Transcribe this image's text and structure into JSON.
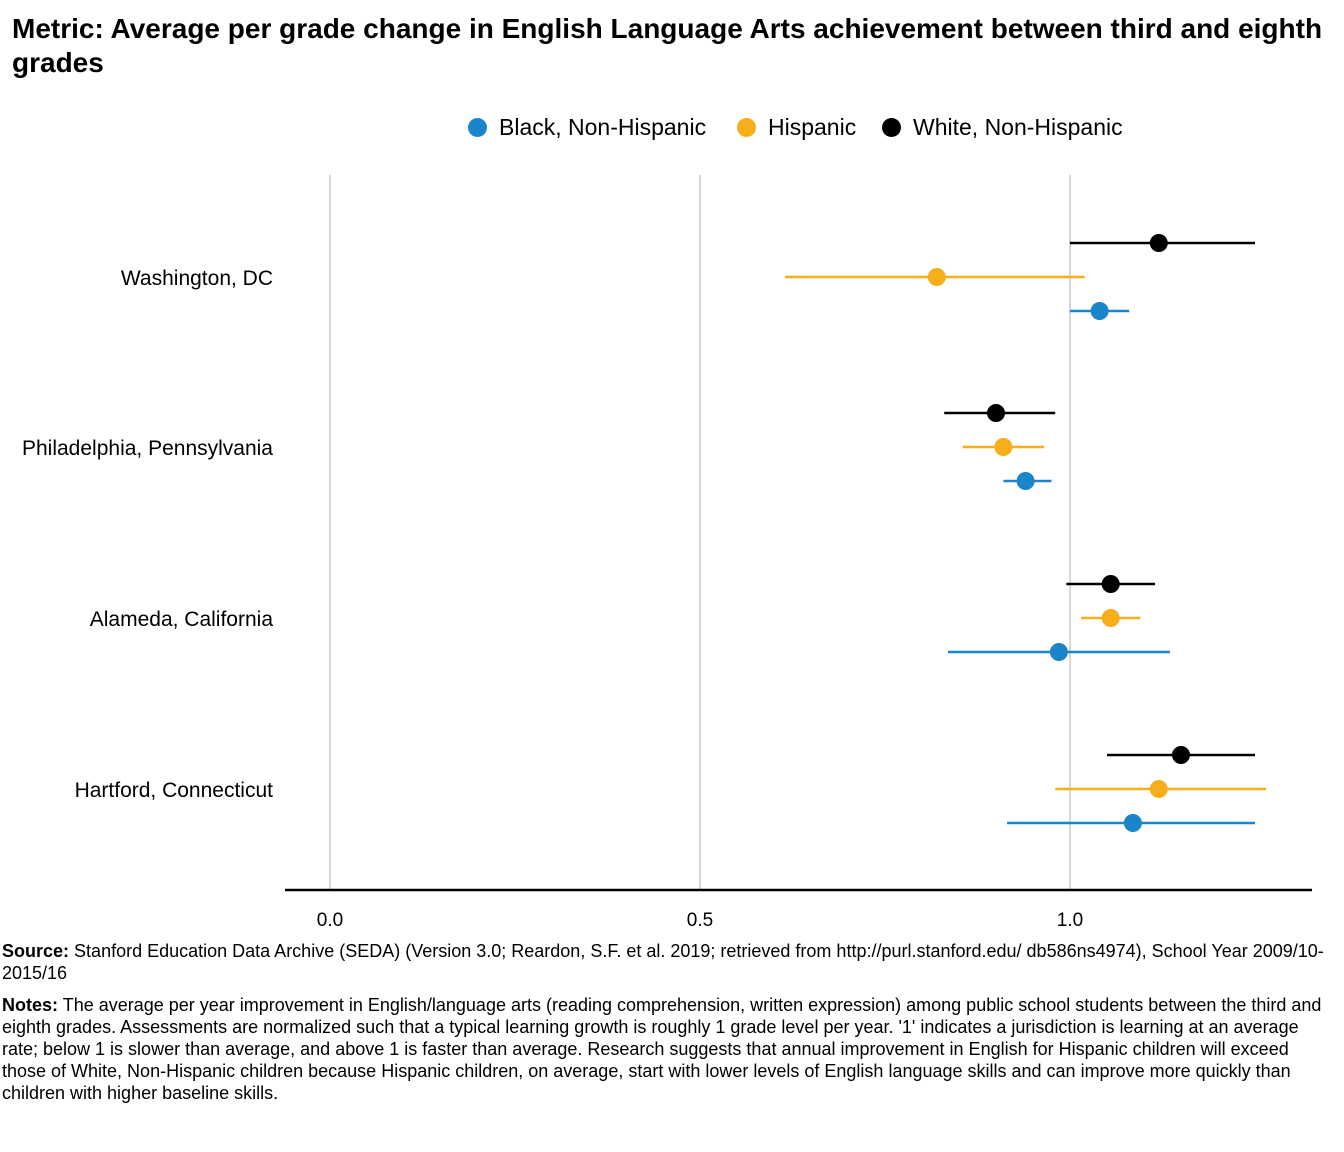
{
  "title": "Metric: Average per grade change in English Language Arts achievement between third and eighth grades",
  "colors": {
    "black_nh": "#1a86c9",
    "hispanic": "#f6ae1a",
    "white_nh": "#000000",
    "grid": "#d6d6d6",
    "axis": "#000000"
  },
  "chart_data": {
    "type": "dot-errorbar",
    "title": "Metric: Average per grade change in English Language Arts achievement between third and eighth grades",
    "categories": [
      "Washington, DC",
      "Philadelphia, Pennsylvania",
      "Alameda, California",
      "Hartford, Connecticut"
    ],
    "xlim": [
      -0.06,
      1.3
    ],
    "xticks": [
      0.0,
      0.5,
      1.0
    ],
    "xtick_labels": [
      "0.0",
      "0.5",
      "1.0"
    ],
    "grid": "vertical",
    "legend_position": "top",
    "series": [
      {
        "name": "White, Non-Hispanic",
        "color_key": "white_nh",
        "values": [
          1.12,
          0.9,
          1.055,
          1.15
        ],
        "low": [
          1.0,
          0.83,
          0.995,
          1.05
        ],
        "high": [
          1.25,
          0.98,
          1.115,
          1.25
        ]
      },
      {
        "name": "Hispanic",
        "color_key": "hispanic",
        "values": [
          0.82,
          0.91,
          1.055,
          1.12
        ],
        "low": [
          0.615,
          0.855,
          1.015,
          0.98
        ],
        "high": [
          1.02,
          0.965,
          1.095,
          1.265
        ]
      },
      {
        "name": "Black, Non-Hispanic",
        "color_key": "black_nh",
        "values": [
          1.04,
          0.94,
          0.985,
          1.085
        ],
        "low": [
          1.0,
          0.91,
          0.835,
          0.915
        ],
        "high": [
          1.08,
          0.975,
          1.135,
          1.25
        ]
      }
    ]
  },
  "legend": [
    {
      "label": "Black, Non-Hispanic",
      "color_key": "black_nh"
    },
    {
      "label": "Hispanic",
      "color_key": "hispanic"
    },
    {
      "label": "White, Non-Hispanic",
      "color_key": "white_nh"
    }
  ],
  "footer": {
    "source_label": "Source:",
    "source_text": "Stanford Education Data Archive (SEDA) (Version 3.0; Reardon, S.F. et al. 2019; retrieved from http://purl.stanford.edu/ db586ns4974), School Year 2009/10-2015/16",
    "notes_label": "Notes:",
    "notes_text": "The average per year improvement in English/language arts (reading comprehension, written expression) among public school students between the third and eighth grades. Assessments are normalized such that a typical learning growth is roughly 1 grade level per year. '1' indicates a jurisdiction is learning at an average rate; below 1 is slower than average, and above 1 is faster than average. Research suggests that annual improvement in English for Hispanic children will exceed those of White, Non-Hispanic children because Hispanic children, on average, start with lower levels of English language skills and can improve more quickly than children with higher baseline skills."
  }
}
